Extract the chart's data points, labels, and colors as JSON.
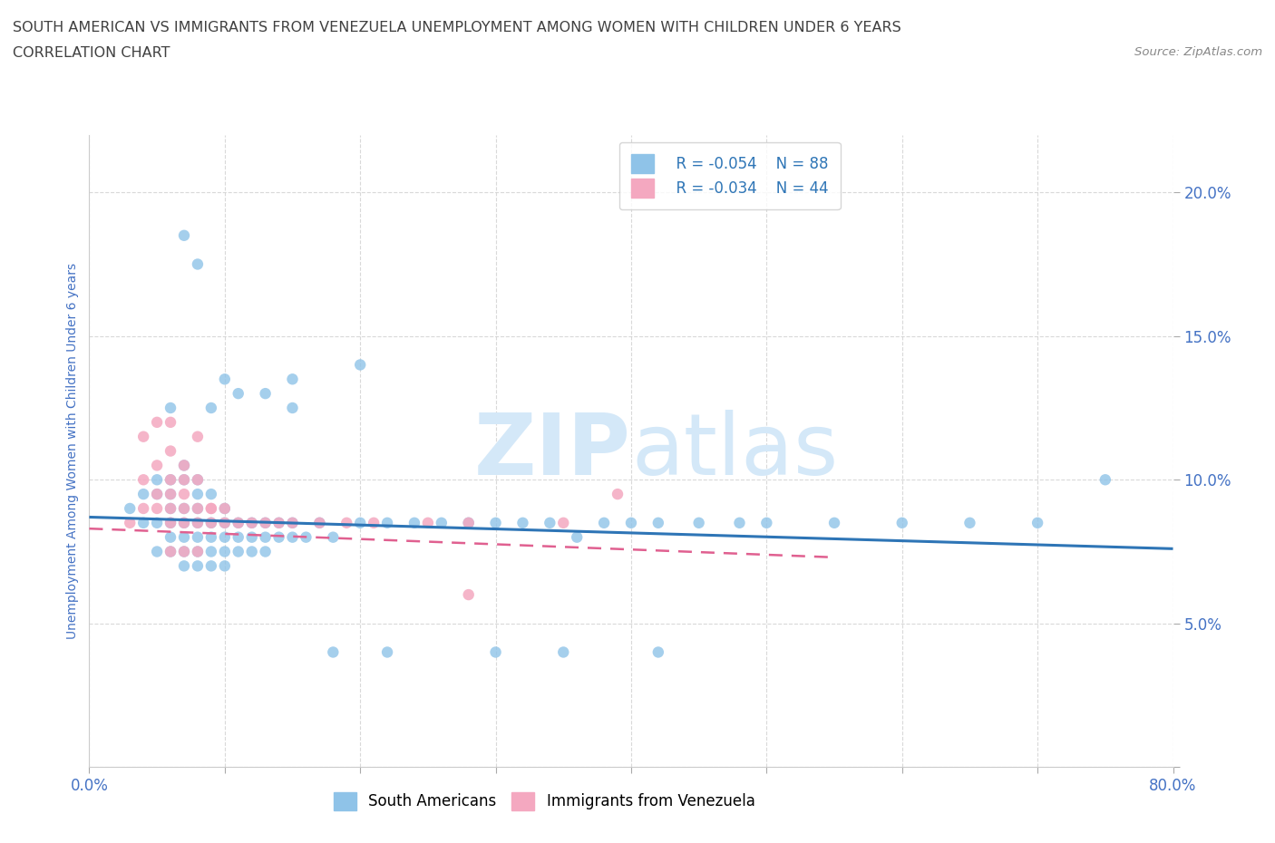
{
  "title_line1": "SOUTH AMERICAN VS IMMIGRANTS FROM VENEZUELA UNEMPLOYMENT AMONG WOMEN WITH CHILDREN UNDER 6 YEARS",
  "title_line2": "CORRELATION CHART",
  "source_text": "Source: ZipAtlas.com",
  "ylabel": "Unemployment Among Women with Children Under 6 years",
  "xlim": [
    0,
    0.8
  ],
  "ylim": [
    0,
    0.22
  ],
  "xticks": [
    0.0,
    0.1,
    0.2,
    0.3,
    0.4,
    0.5,
    0.6,
    0.7,
    0.8
  ],
  "yticks": [
    0.0,
    0.05,
    0.1,
    0.15,
    0.2
  ],
  "legend_r1": "R = -0.054",
  "legend_n1": "N = 88",
  "legend_r2": "R = -0.034",
  "legend_n2": "N = 44",
  "color_blue": "#8fc3e8",
  "color_pink": "#f4a8c0",
  "color_blue_line": "#2e75b6",
  "color_pink_line": "#e06090",
  "title_color": "#404040",
  "axis_label_color": "#4472c4",
  "tick_color": "#4472c4",
  "grid_color": "#d0d0d0",
  "watermark_color": "#d4e8f8",
  "blue_scatter_x": [
    0.03,
    0.04,
    0.04,
    0.05,
    0.05,
    0.05,
    0.05,
    0.06,
    0.06,
    0.06,
    0.06,
    0.06,
    0.06,
    0.07,
    0.07,
    0.07,
    0.07,
    0.07,
    0.07,
    0.07,
    0.08,
    0.08,
    0.08,
    0.08,
    0.08,
    0.08,
    0.08,
    0.09,
    0.09,
    0.09,
    0.09,
    0.09,
    0.1,
    0.1,
    0.1,
    0.1,
    0.1,
    0.11,
    0.11,
    0.11,
    0.12,
    0.12,
    0.12,
    0.13,
    0.13,
    0.13,
    0.14,
    0.14,
    0.15,
    0.15,
    0.16,
    0.17,
    0.18,
    0.2,
    0.22,
    0.24,
    0.26,
    0.28,
    0.3,
    0.32,
    0.34,
    0.36,
    0.38,
    0.4,
    0.42,
    0.45,
    0.48,
    0.5,
    0.55,
    0.6,
    0.65,
    0.7,
    0.08,
    0.07,
    0.1,
    0.15,
    0.2,
    0.09,
    0.06,
    0.11,
    0.13,
    0.15,
    0.18,
    0.22,
    0.3,
    0.35,
    0.42,
    0.75
  ],
  "blue_scatter_y": [
    0.09,
    0.085,
    0.095,
    0.085,
    0.095,
    0.1,
    0.075,
    0.08,
    0.085,
    0.09,
    0.095,
    0.1,
    0.075,
    0.08,
    0.085,
    0.09,
    0.1,
    0.105,
    0.075,
    0.07,
    0.08,
    0.085,
    0.09,
    0.095,
    0.1,
    0.075,
    0.07,
    0.08,
    0.085,
    0.095,
    0.075,
    0.07,
    0.08,
    0.085,
    0.09,
    0.075,
    0.07,
    0.08,
    0.085,
    0.075,
    0.085,
    0.08,
    0.075,
    0.085,
    0.08,
    0.075,
    0.085,
    0.08,
    0.085,
    0.08,
    0.08,
    0.085,
    0.08,
    0.085,
    0.085,
    0.085,
    0.085,
    0.085,
    0.085,
    0.085,
    0.085,
    0.08,
    0.085,
    0.085,
    0.085,
    0.085,
    0.085,
    0.085,
    0.085,
    0.085,
    0.085,
    0.085,
    0.175,
    0.185,
    0.135,
    0.135,
    0.14,
    0.125,
    0.125,
    0.13,
    0.13,
    0.125,
    0.04,
    0.04,
    0.04,
    0.04,
    0.04,
    0.1
  ],
  "pink_scatter_x": [
    0.03,
    0.04,
    0.04,
    0.05,
    0.05,
    0.05,
    0.06,
    0.06,
    0.06,
    0.06,
    0.06,
    0.07,
    0.07,
    0.07,
    0.07,
    0.07,
    0.08,
    0.08,
    0.08,
    0.08,
    0.09,
    0.09,
    0.1,
    0.1,
    0.11,
    0.12,
    0.13,
    0.14,
    0.15,
    0.17,
    0.19,
    0.21,
    0.25,
    0.28,
    0.35,
    0.06,
    0.07,
    0.08,
    0.09,
    0.04,
    0.05,
    0.06,
    0.39,
    0.28
  ],
  "pink_scatter_y": [
    0.085,
    0.09,
    0.1,
    0.09,
    0.095,
    0.105,
    0.085,
    0.09,
    0.095,
    0.1,
    0.075,
    0.085,
    0.09,
    0.095,
    0.1,
    0.075,
    0.085,
    0.09,
    0.1,
    0.075,
    0.085,
    0.09,
    0.085,
    0.09,
    0.085,
    0.085,
    0.085,
    0.085,
    0.085,
    0.085,
    0.085,
    0.085,
    0.085,
    0.085,
    0.085,
    0.11,
    0.105,
    0.115,
    0.09,
    0.115,
    0.12,
    0.12,
    0.095,
    0.06
  ],
  "blue_line_x": [
    0.0,
    0.8
  ],
  "blue_line_y": [
    0.087,
    0.076
  ],
  "pink_line_x": [
    0.0,
    0.55
  ],
  "pink_line_y": [
    0.083,
    0.073
  ],
  "figsize": [
    14.06,
    9.3
  ],
  "dpi": 100
}
